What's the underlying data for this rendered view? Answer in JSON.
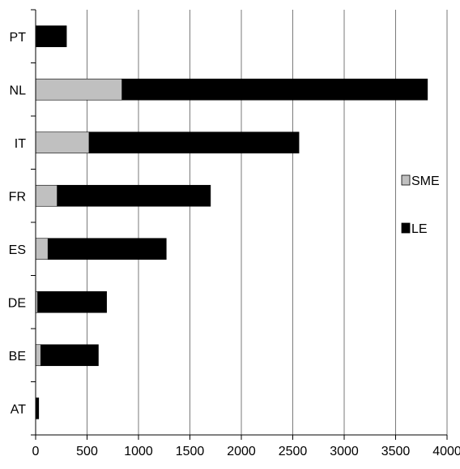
{
  "chart_data": {
    "type": "bar",
    "orientation": "horizontal",
    "stacked": true,
    "title": "",
    "xlabel": "",
    "ylabel": "",
    "categories": [
      "PT",
      "NL",
      "IT",
      "FR",
      "ES",
      "DE",
      "BE",
      "AT"
    ],
    "series": [
      {
        "name": "SME",
        "color": "#c0c0c0",
        "values": [
          0,
          840,
          520,
          210,
          120,
          20,
          50,
          0
        ]
      },
      {
        "name": "LE",
        "color": "#000000",
        "values": [
          300,
          2970,
          2040,
          1490,
          1150,
          670,
          560,
          30
        ]
      }
    ],
    "xlim": [
      0,
      4000
    ],
    "xticks": [
      "0",
      "500",
      "1000",
      "1500",
      "2000",
      "2500",
      "3000",
      "3500",
      "4000"
    ],
    "grid": "vertical",
    "legend_position": "right"
  }
}
